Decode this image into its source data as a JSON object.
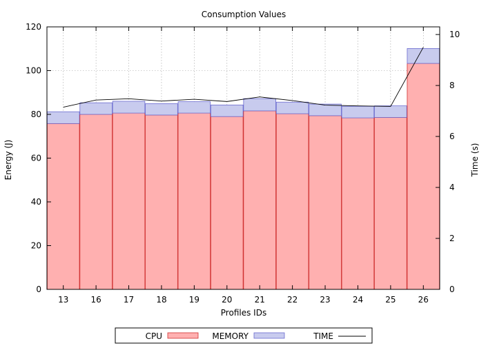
{
  "chart_data": {
    "type": "bar",
    "title": "Consumption Values",
    "xlabel": "Profiles IDs",
    "ylabel": "Energy (J)",
    "y2label": "Time (s)",
    "categories": [
      "13",
      "16",
      "17",
      "18",
      "19",
      "20",
      "21",
      "22",
      "23",
      "24",
      "25",
      "26"
    ],
    "series": [
      {
        "name": "CPU",
        "kind": "stacked-bar",
        "color": "#ffb0b0",
        "edge": "#d03030",
        "values": [
          75.8,
          80.0,
          80.6,
          79.7,
          80.6,
          79.0,
          81.6,
          80.3,
          79.4,
          78.4,
          78.6,
          103.3
        ]
      },
      {
        "name": "MEMORY",
        "kind": "stacked-bar",
        "color": "#c8cbee",
        "edge": "#6a6acf",
        "values": [
          5.4,
          5.3,
          5.4,
          5.2,
          5.2,
          5.3,
          5.6,
          5.3,
          5.3,
          5.3,
          5.3,
          6.8
        ]
      },
      {
        "name": "TIME",
        "kind": "line",
        "axis": "y2",
        "color": "#000000",
        "values": [
          7.15,
          7.43,
          7.48,
          7.39,
          7.46,
          7.37,
          7.55,
          7.41,
          7.23,
          7.2,
          7.18,
          9.5
        ]
      }
    ],
    "ylim": [
      0,
      120
    ],
    "yticks": [
      0,
      20,
      40,
      60,
      80,
      100,
      120
    ],
    "y2lim": [
      0,
      10.3
    ],
    "y2ticks": [
      0,
      2,
      4,
      6,
      8,
      10
    ],
    "grid": true,
    "legend": "bottom"
  }
}
